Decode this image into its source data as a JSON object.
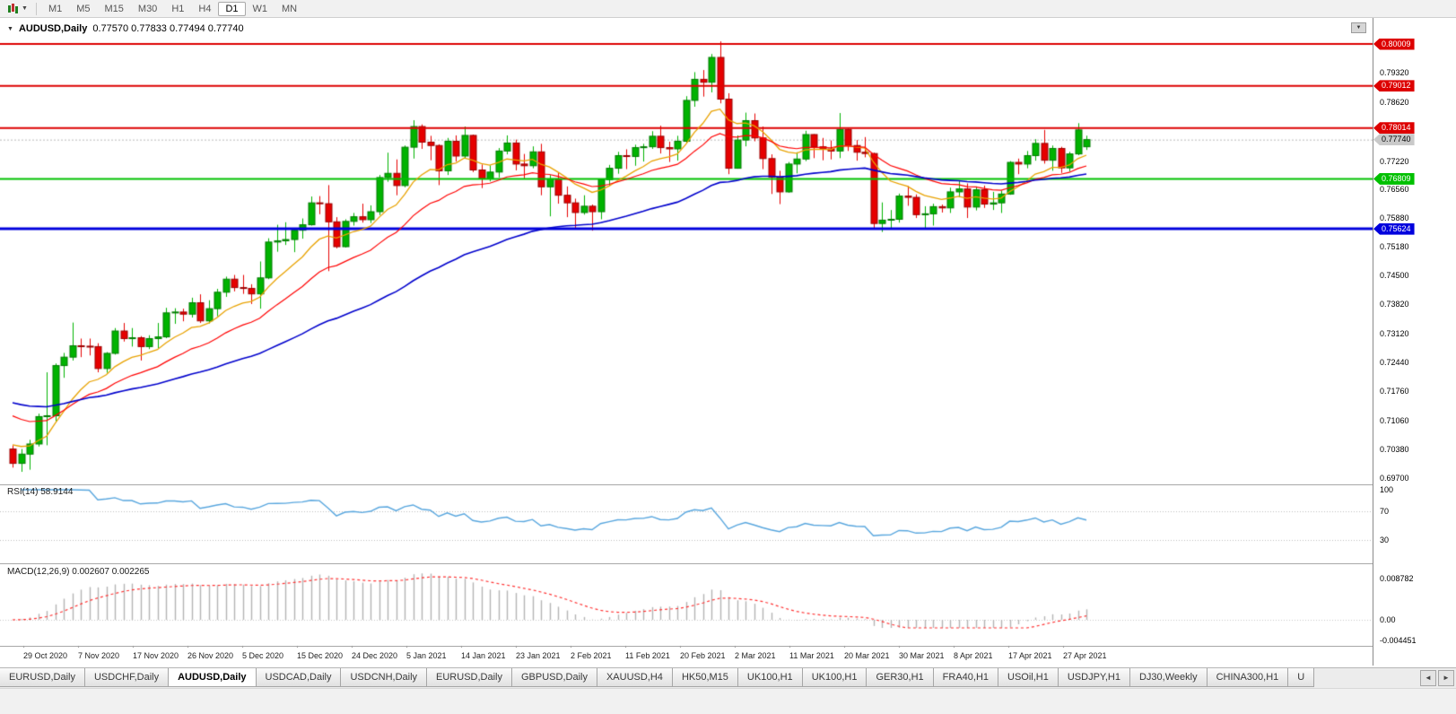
{
  "toolbar": {
    "timeframes": [
      "M1",
      "M5",
      "M15",
      "M30",
      "H1",
      "H4",
      "D1",
      "W1",
      "MN"
    ],
    "active_timeframe": "D1",
    "dropdown_icon": "▼"
  },
  "chart": {
    "title_symbol": "AUDUSD,Daily",
    "title_ohlc": "0.77570 0.77833 0.77494 0.77740",
    "marker_icon": "▼",
    "corner_icon": "▼"
  },
  "rsi_panel": {
    "label": "RSI(14) 58.9144",
    "axis_labels": [
      "100",
      "70",
      "30"
    ]
  },
  "macd_panel": {
    "label": "MACD(12,26,9) 0.002607 0.002265",
    "axis_labels": [
      "0.008782",
      "0.00",
      "-0.004451"
    ]
  },
  "price_axis": {
    "labels": [
      "0.79320",
      "0.78620",
      "0.77220",
      "0.76560",
      "0.75880",
      "0.75180",
      "0.74500",
      "0.73820",
      "0.73120",
      "0.72440",
      "0.71760",
      "0.71060",
      "0.70380",
      "0.69700"
    ],
    "current_tag": {
      "label": "0.77740"
    }
  },
  "chart_data": {
    "type": "candlestick",
    "symbol": "AUDUSD",
    "timeframe": "Daily",
    "ylim": [
      0.695,
      0.806
    ],
    "x_labels": [
      "29 Oct 2020",
      "7 Nov 2020",
      "17 Nov 2020",
      "26 Nov 2020",
      "5 Dec 2020",
      "15 Dec 2020",
      "24 Dec 2020",
      "5 Jan 2021",
      "14 Jan 2021",
      "23 Jan 2021",
      "2 Feb 2021",
      "11 Feb 2021",
      "20 Feb 2021",
      "2 Mar 2021",
      "11 Mar 2021",
      "20 Mar 2021",
      "30 Mar 2021",
      "8 Apr 2021",
      "17 Apr 2021",
      "27 Apr 2021"
    ],
    "candles_ohlc": [
      [
        0.704,
        0.7049,
        0.6996,
        0.7006
      ],
      [
        0.7006,
        0.704,
        0.6986,
        0.7028
      ],
      [
        0.7028,
        0.7062,
        0.6991,
        0.7052
      ],
      [
        0.7052,
        0.7124,
        0.7046,
        0.7117
      ],
      [
        0.7117,
        0.7222,
        0.7049,
        0.7119
      ],
      [
        0.7119,
        0.7243,
        0.7106,
        0.7238
      ],
      [
        0.7238,
        0.7268,
        0.7209,
        0.7258
      ],
      [
        0.7258,
        0.734,
        0.725,
        0.7285
      ],
      [
        0.7285,
        0.7302,
        0.7258,
        0.7284
      ],
      [
        0.7284,
        0.7302,
        0.7262,
        0.7283
      ],
      [
        0.7283,
        0.7291,
        0.7222,
        0.7231
      ],
      [
        0.7231,
        0.727,
        0.7221,
        0.7267
      ],
      [
        0.7267,
        0.7327,
        0.7264,
        0.732
      ],
      [
        0.732,
        0.7339,
        0.7295,
        0.7302
      ],
      [
        0.7302,
        0.7327,
        0.7283,
        0.7304
      ],
      [
        0.7304,
        0.7308,
        0.725,
        0.7283
      ],
      [
        0.7283,
        0.731,
        0.7277,
        0.7302
      ],
      [
        0.7302,
        0.7339,
        0.7279,
        0.7306
      ],
      [
        0.7306,
        0.7375,
        0.7303,
        0.7363
      ],
      [
        0.7363,
        0.7374,
        0.7337,
        0.7365
      ],
      [
        0.7365,
        0.7373,
        0.7343,
        0.736
      ],
      [
        0.736,
        0.7399,
        0.7352,
        0.7387
      ],
      [
        0.7387,
        0.7407,
        0.7339,
        0.7344
      ],
      [
        0.7344,
        0.7393,
        0.7338,
        0.7373
      ],
      [
        0.7373,
        0.742,
        0.7355,
        0.7412
      ],
      [
        0.7412,
        0.7449,
        0.7401,
        0.7443
      ],
      [
        0.7443,
        0.7453,
        0.7414,
        0.7423
      ],
      [
        0.7423,
        0.7453,
        0.7408,
        0.7421
      ],
      [
        0.7421,
        0.7431,
        0.7384,
        0.7408
      ],
      [
        0.7408,
        0.7485,
        0.7373,
        0.7446
      ],
      [
        0.7446,
        0.754,
        0.7443,
        0.7531
      ],
      [
        0.7531,
        0.7572,
        0.7508,
        0.7534
      ],
      [
        0.7534,
        0.7578,
        0.7524,
        0.7537
      ],
      [
        0.7537,
        0.7564,
        0.7507,
        0.7559
      ],
      [
        0.7559,
        0.7587,
        0.7539,
        0.7572
      ],
      [
        0.7572,
        0.7639,
        0.757,
        0.7624
      ],
      [
        0.7624,
        0.764,
        0.7597,
        0.7622
      ],
      [
        0.7622,
        0.7666,
        0.7462,
        0.7579
      ],
      [
        0.7579,
        0.759,
        0.7516,
        0.752
      ],
      [
        0.752,
        0.7585,
        0.7518,
        0.758
      ],
      [
        0.758,
        0.76,
        0.757,
        0.7591
      ],
      [
        0.7591,
        0.7622,
        0.7577,
        0.7584
      ],
      [
        0.7584,
        0.7618,
        0.7576,
        0.7603
      ],
      [
        0.7603,
        0.769,
        0.7595,
        0.7684
      ],
      [
        0.7684,
        0.7743,
        0.7674,
        0.7694
      ],
      [
        0.7694,
        0.7727,
        0.7642,
        0.7665
      ],
      [
        0.7665,
        0.776,
        0.7661,
        0.7756
      ],
      [
        0.7756,
        0.782,
        0.7729,
        0.7805
      ],
      [
        0.7805,
        0.781,
        0.7752,
        0.7768
      ],
      [
        0.7768,
        0.7783,
        0.7725,
        0.776
      ],
      [
        0.776,
        0.7763,
        0.7666,
        0.77
      ],
      [
        0.77,
        0.7778,
        0.769,
        0.777
      ],
      [
        0.777,
        0.7784,
        0.7722,
        0.7735
      ],
      [
        0.7735,
        0.7805,
        0.773,
        0.7784
      ],
      [
        0.7784,
        0.7786,
        0.7697,
        0.7702
      ],
      [
        0.7702,
        0.7715,
        0.7659,
        0.7681
      ],
      [
        0.7681,
        0.7713,
        0.7675,
        0.7697
      ],
      [
        0.7697,
        0.7754,
        0.7684,
        0.7747
      ],
      [
        0.7747,
        0.7784,
        0.7739,
        0.7766
      ],
      [
        0.7766,
        0.7774,
        0.7701,
        0.7716
      ],
      [
        0.7716,
        0.774,
        0.7682,
        0.7712
      ],
      [
        0.7712,
        0.7758,
        0.7706,
        0.7745
      ],
      [
        0.7745,
        0.7764,
        0.7642,
        0.7662
      ],
      [
        0.7662,
        0.769,
        0.7592,
        0.7681
      ],
      [
        0.7681,
        0.7696,
        0.7622,
        0.7642
      ],
      [
        0.7642,
        0.7663,
        0.759,
        0.7624
      ],
      [
        0.7624,
        0.7634,
        0.7564,
        0.7601
      ],
      [
        0.7601,
        0.7642,
        0.7596,
        0.7616
      ],
      [
        0.7616,
        0.762,
        0.7558,
        0.7603
      ],
      [
        0.7603,
        0.7681,
        0.7585,
        0.7679
      ],
      [
        0.7679,
        0.7714,
        0.7665,
        0.7706
      ],
      [
        0.7706,
        0.7745,
        0.7693,
        0.7736
      ],
      [
        0.7736,
        0.7751,
        0.7704,
        0.7734
      ],
      [
        0.7734,
        0.7762,
        0.7712,
        0.7755
      ],
      [
        0.7755,
        0.7764,
        0.7722,
        0.7757
      ],
      [
        0.7757,
        0.7794,
        0.7752,
        0.7782
      ],
      [
        0.7782,
        0.7807,
        0.7741,
        0.7755
      ],
      [
        0.7755,
        0.7769,
        0.7721,
        0.7752
      ],
      [
        0.7752,
        0.7783,
        0.7724,
        0.777
      ],
      [
        0.777,
        0.7877,
        0.7765,
        0.7867
      ],
      [
        0.7867,
        0.7934,
        0.7852,
        0.7917
      ],
      [
        0.7917,
        0.7939,
        0.7876,
        0.791
      ],
      [
        0.791,
        0.7977,
        0.7886,
        0.7969
      ],
      [
        0.7969,
        0.8007,
        0.786,
        0.787
      ],
      [
        0.787,
        0.7884,
        0.7692,
        0.7706
      ],
      [
        0.7706,
        0.7784,
        0.7705,
        0.7773
      ],
      [
        0.7773,
        0.7838,
        0.7758,
        0.7819
      ],
      [
        0.7819,
        0.7836,
        0.777,
        0.7778
      ],
      [
        0.7778,
        0.7805,
        0.7704,
        0.7729
      ],
      [
        0.7729,
        0.7739,
        0.7645,
        0.7685
      ],
      [
        0.7685,
        0.77,
        0.7621,
        0.765
      ],
      [
        0.765,
        0.7721,
        0.7648,
        0.7716
      ],
      [
        0.7716,
        0.7744,
        0.7694,
        0.7728
      ],
      [
        0.7728,
        0.7795,
        0.7723,
        0.7786
      ],
      [
        0.7786,
        0.7787,
        0.773,
        0.7757
      ],
      [
        0.7757,
        0.7778,
        0.7725,
        0.7752
      ],
      [
        0.7752,
        0.7772,
        0.7727,
        0.7747
      ],
      [
        0.7747,
        0.7837,
        0.773,
        0.7798
      ],
      [
        0.7798,
        0.78,
        0.7747,
        0.776
      ],
      [
        0.776,
        0.7773,
        0.7724,
        0.7744
      ],
      [
        0.7744,
        0.778,
        0.7732,
        0.7741
      ],
      [
        0.7741,
        0.7743,
        0.7563,
        0.7575
      ],
      [
        0.7575,
        0.7625,
        0.7555,
        0.7583
      ],
      [
        0.7583,
        0.7607,
        0.7562,
        0.7585
      ],
      [
        0.7585,
        0.7646,
        0.7577,
        0.764
      ],
      [
        0.764,
        0.7664,
        0.7617,
        0.7637
      ],
      [
        0.7637,
        0.7644,
        0.7588,
        0.7596
      ],
      [
        0.7596,
        0.7616,
        0.7564,
        0.7598
      ],
      [
        0.7598,
        0.7622,
        0.757,
        0.7615
      ],
      [
        0.7615,
        0.762,
        0.7601,
        0.7612
      ],
      [
        0.7612,
        0.766,
        0.76,
        0.765
      ],
      [
        0.765,
        0.7677,
        0.7637,
        0.7657
      ],
      [
        0.7657,
        0.767,
        0.7588,
        0.7614
      ],
      [
        0.7614,
        0.7663,
        0.7606,
        0.7655
      ],
      [
        0.7655,
        0.7665,
        0.7612,
        0.7621
      ],
      [
        0.7621,
        0.765,
        0.7607,
        0.7624
      ],
      [
        0.7624,
        0.7653,
        0.76,
        0.7645
      ],
      [
        0.7645,
        0.7723,
        0.7643,
        0.772
      ],
      [
        0.772,
        0.7729,
        0.7692,
        0.7716
      ],
      [
        0.7716,
        0.7747,
        0.7706,
        0.7736
      ],
      [
        0.7736,
        0.7775,
        0.7724,
        0.7765
      ],
      [
        0.7765,
        0.7797,
        0.7717,
        0.7725
      ],
      [
        0.7725,
        0.776,
        0.77,
        0.7753
      ],
      [
        0.7753,
        0.7757,
        0.7695,
        0.7707
      ],
      [
        0.7707,
        0.7745,
        0.7698,
        0.774
      ],
      [
        0.774,
        0.7813,
        0.7737,
        0.7797
      ],
      [
        0.7757,
        0.77833,
        0.77494,
        0.7774
      ]
    ],
    "levels": [
      {
        "label": "0.80009",
        "price": 0.80009,
        "color": "#dd0000",
        "width": 2
      },
      {
        "label": "0.79012",
        "price": 0.79012,
        "color": "#dd0000",
        "width": 2
      },
      {
        "label": "0.78014",
        "price": 0.78014,
        "color": "#dd0000",
        "width": 2
      },
      {
        "label": "0.76809",
        "price": 0.76809,
        "color": "#00c000",
        "width": 2
      },
      {
        "label": "0.75624",
        "price": 0.75624,
        "color": "#0000dd",
        "width": 3
      }
    ],
    "current_price": 0.7774,
    "up_color": "#00b300",
    "down_color": "#e60000",
    "moving_averages": [
      {
        "period": 10,
        "color": "#e8a200",
        "seed": 0.706,
        "width": 1.3
      },
      {
        "period": 21,
        "color": "#ff0000",
        "seed": 0.713,
        "width": 1.2
      },
      {
        "period": 55,
        "color": "#0000cc",
        "seed": 0.7155,
        "width": 1.6
      }
    ],
    "rsi": {
      "period": 14,
      "value": "58.9144",
      "color": "#58a6de",
      "levels": [
        70,
        30
      ]
    },
    "macd": {
      "fast": 12,
      "slow": 26,
      "signal": 9,
      "main_value": "0.002607",
      "signal_value": "0.002265",
      "histogram_color": "#b4b4b4",
      "signal_color": "#ff3333"
    }
  },
  "tabs": {
    "items": [
      "EURUSD,Daily",
      "USDCHF,Daily",
      "AUDUSD,Daily",
      "USDCAD,Daily",
      "USDCNH,Daily",
      "EURUSD,Daily",
      "GBPUSD,Daily",
      "XAUUSD,H4",
      "HK50,M15",
      "UK100,H1",
      "UK100,H1",
      "GER30,H1",
      "FRA40,H1",
      "USOil,H1",
      "USDJPY,H1",
      "DJ30,Weekly",
      "CHINA300,H1",
      "U"
    ],
    "active_index": 2,
    "scroll_left_icon": "◄",
    "scroll_right_icon": "►"
  }
}
